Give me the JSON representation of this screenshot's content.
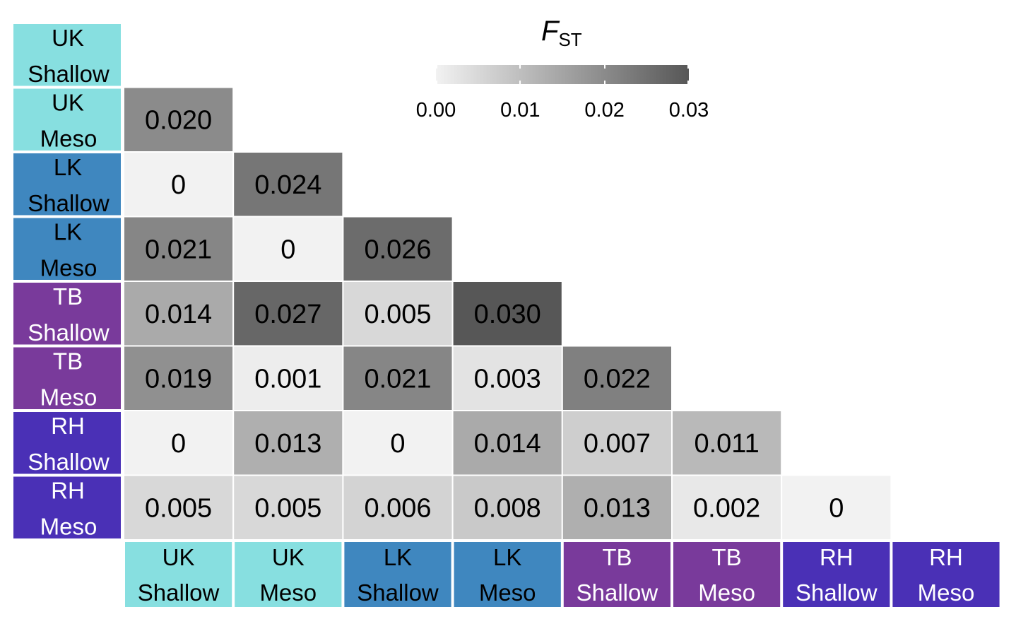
{
  "legend": {
    "title_symbol": "F",
    "title_subscript": "ST",
    "ticks": [
      "0.00",
      "0.01",
      "0.02",
      "0.03"
    ],
    "tick_values": [
      0,
      0.01,
      0.02,
      0.03
    ],
    "range": [
      0,
      0.03
    ],
    "color_low": "#f2f2f2",
    "color_high": "#575757"
  },
  "chart_data": {
    "type": "heatmap",
    "title": "",
    "xlabel": "",
    "ylabel": "",
    "populations": [
      {
        "line1": "UK",
        "line2": "Shallow",
        "color": "#87dfe0",
        "text_color": "#000000"
      },
      {
        "line1": "UK",
        "line2": "Meso",
        "color": "#87dfe0",
        "text_color": "#000000"
      },
      {
        "line1": "LK",
        "line2": "Shallow",
        "color": "#3f87bf",
        "text_color": "#000000"
      },
      {
        "line1": "LK",
        "line2": "Meso",
        "color": "#3f87bf",
        "text_color": "#000000"
      },
      {
        "line1": "TB",
        "line2": "Shallow",
        "color": "#793a9b",
        "text_color": "#ffffff"
      },
      {
        "line1": "TB",
        "line2": "Meso",
        "color": "#793a9b",
        "text_color": "#ffffff"
      },
      {
        "line1": "RH",
        "line2": "Shallow",
        "color": "#4a30b6",
        "text_color": "#ffffff"
      },
      {
        "line1": "RH",
        "line2": "Meso",
        "color": "#4a30b6",
        "text_color": "#ffffff"
      }
    ],
    "cells": [
      {
        "row": 1,
        "col": 0,
        "value": 0.02,
        "label": "0.020"
      },
      {
        "row": 2,
        "col": 0,
        "value": 0,
        "label": "0"
      },
      {
        "row": 2,
        "col": 1,
        "value": 0.024,
        "label": "0.024"
      },
      {
        "row": 3,
        "col": 0,
        "value": 0.021,
        "label": "0.021"
      },
      {
        "row": 3,
        "col": 1,
        "value": 0,
        "label": "0"
      },
      {
        "row": 3,
        "col": 2,
        "value": 0.026,
        "label": "0.026"
      },
      {
        "row": 4,
        "col": 0,
        "value": 0.014,
        "label": "0.014"
      },
      {
        "row": 4,
        "col": 1,
        "value": 0.027,
        "label": "0.027"
      },
      {
        "row": 4,
        "col": 2,
        "value": 0.005,
        "label": "0.005"
      },
      {
        "row": 4,
        "col": 3,
        "value": 0.03,
        "label": "0.030"
      },
      {
        "row": 5,
        "col": 0,
        "value": 0.019,
        "label": "0.019"
      },
      {
        "row": 5,
        "col": 1,
        "value": 0.001,
        "label": "0.001"
      },
      {
        "row": 5,
        "col": 2,
        "value": 0.021,
        "label": "0.021"
      },
      {
        "row": 5,
        "col": 3,
        "value": 0.003,
        "label": "0.003"
      },
      {
        "row": 5,
        "col": 4,
        "value": 0.022,
        "label": "0.022"
      },
      {
        "row": 6,
        "col": 0,
        "value": 0,
        "label": "0"
      },
      {
        "row": 6,
        "col": 1,
        "value": 0.013,
        "label": "0.013"
      },
      {
        "row": 6,
        "col": 2,
        "value": 0,
        "label": "0"
      },
      {
        "row": 6,
        "col": 3,
        "value": 0.014,
        "label": "0.014"
      },
      {
        "row": 6,
        "col": 4,
        "value": 0.007,
        "label": "0.007"
      },
      {
        "row": 6,
        "col": 5,
        "value": 0.011,
        "label": "0.011"
      },
      {
        "row": 7,
        "col": 0,
        "value": 0.005,
        "label": "0.005"
      },
      {
        "row": 7,
        "col": 1,
        "value": 0.005,
        "label": "0.005"
      },
      {
        "row": 7,
        "col": 2,
        "value": 0.006,
        "label": "0.006"
      },
      {
        "row": 7,
        "col": 3,
        "value": 0.008,
        "label": "0.008"
      },
      {
        "row": 7,
        "col": 4,
        "value": 0.013,
        "label": "0.013"
      },
      {
        "row": 7,
        "col": 5,
        "value": 0.002,
        "label": "0.002"
      },
      {
        "row": 7,
        "col": 6,
        "value": 0,
        "label": "0"
      }
    ]
  }
}
